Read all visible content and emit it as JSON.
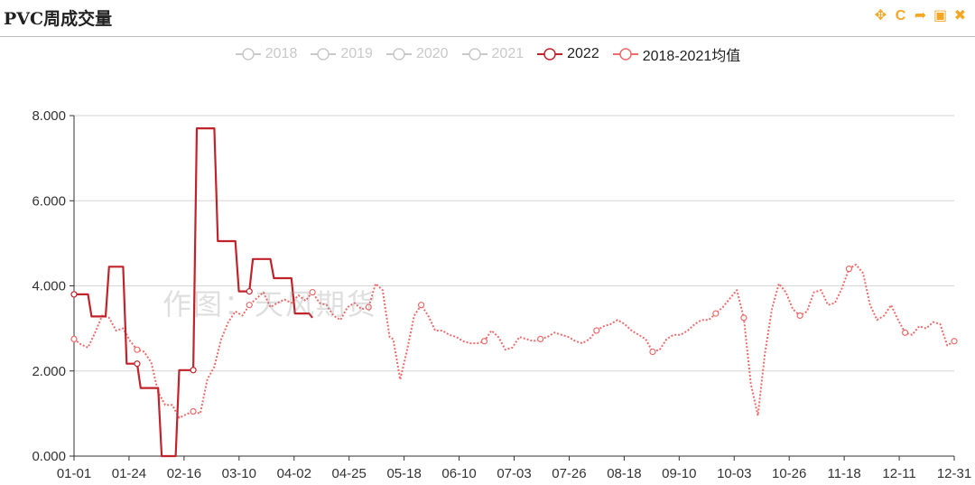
{
  "header": {
    "title": "PVC周成交量",
    "tools": [
      {
        "name": "move-icon",
        "glyph": "✥"
      },
      {
        "name": "refresh-icon",
        "glyph": "C"
      },
      {
        "name": "share-icon",
        "glyph": "➦"
      },
      {
        "name": "save-image-icon",
        "glyph": "▣"
      },
      {
        "name": "close-icon",
        "glyph": "✖"
      }
    ]
  },
  "watermark": "作图：天风期货",
  "legend": [
    {
      "label": "2018",
      "active": false,
      "color": "#c9c9c9"
    },
    {
      "label": "2019",
      "active": false,
      "color": "#c9c9c9"
    },
    {
      "label": "2020",
      "active": false,
      "color": "#c9c9c9"
    },
    {
      "label": "2021",
      "active": false,
      "color": "#c9c9c9"
    },
    {
      "label": "2022",
      "active": true,
      "color": "#c1232b"
    },
    {
      "label": "2018-2021均值",
      "active": true,
      "color": "#f06b6b"
    }
  ],
  "chart_data": {
    "type": "line",
    "title": "PVC周成交量",
    "ylim": [
      0,
      8
    ],
    "y_ticks": [
      "0.000",
      "2.000",
      "4.000",
      "6.000",
      "8.000"
    ],
    "x_ticks": [
      "01-01",
      "01-24",
      "02-16",
      "03-10",
      "04-02",
      "04-25",
      "05-18",
      "06-10",
      "07-03",
      "07-26",
      "08-18",
      "09-10",
      "10-03",
      "10-26",
      "11-18",
      "12-11",
      "12-31"
    ],
    "grid": true,
    "legend_position": "top-center",
    "series": [
      {
        "name": "2022",
        "style": "solid-step",
        "color": "#c1232b",
        "points": [
          [
            0,
            3.8
          ],
          [
            4,
            3.8
          ],
          [
            5,
            3.28
          ],
          [
            9,
            3.28
          ],
          [
            10,
            4.45
          ],
          [
            14,
            4.45
          ],
          [
            15,
            2.17
          ],
          [
            18,
            2.17
          ],
          [
            19,
            1.6
          ],
          [
            24,
            1.6
          ],
          [
            25,
            0.0
          ],
          [
            29,
            0.0
          ],
          [
            30,
            2.02
          ],
          [
            34,
            2.02
          ],
          [
            35,
            7.7
          ],
          [
            40,
            7.7
          ],
          [
            41,
            5.05
          ],
          [
            46,
            5.05
          ],
          [
            47,
            3.87
          ],
          [
            50,
            3.87
          ],
          [
            51,
            4.63
          ],
          [
            56,
            4.63
          ],
          [
            57,
            4.18
          ],
          [
            62,
            4.18
          ],
          [
            63,
            3.35
          ],
          [
            67,
            3.35
          ],
          [
            68,
            3.25
          ]
        ],
        "markers": [
          0,
          18,
          34,
          50
        ]
      },
      {
        "name": "2018-2021均值",
        "style": "dotted",
        "color": "#f06b6b",
        "points": [
          [
            0,
            2.75
          ],
          [
            2,
            2.62
          ],
          [
            4,
            2.55
          ],
          [
            6,
            2.9
          ],
          [
            8,
            3.3
          ],
          [
            10,
            3.25
          ],
          [
            12,
            2.95
          ],
          [
            14,
            3.0
          ],
          [
            16,
            2.7
          ],
          [
            18,
            2.5
          ],
          [
            20,
            2.45
          ],
          [
            22,
            2.2
          ],
          [
            24,
            1.5
          ],
          [
            26,
            1.2
          ],
          [
            28,
            1.2
          ],
          [
            30,
            0.9
          ],
          [
            32,
            0.98
          ],
          [
            34,
            1.05
          ],
          [
            36,
            1.0
          ],
          [
            38,
            1.8
          ],
          [
            40,
            2.1
          ],
          [
            42,
            2.75
          ],
          [
            44,
            3.15
          ],
          [
            46,
            3.4
          ],
          [
            48,
            3.3
          ],
          [
            50,
            3.55
          ],
          [
            52,
            3.7
          ],
          [
            54,
            3.85
          ],
          [
            56,
            3.5
          ],
          [
            58,
            3.6
          ],
          [
            60,
            3.68
          ],
          [
            62,
            3.6
          ],
          [
            64,
            3.78
          ],
          [
            66,
            3.65
          ],
          [
            68,
            3.85
          ],
          [
            70,
            3.6
          ],
          [
            72,
            3.55
          ],
          [
            74,
            3.3
          ],
          [
            76,
            3.2
          ],
          [
            78,
            3.5
          ],
          [
            80,
            3.6
          ],
          [
            82,
            3.45
          ],
          [
            84,
            3.5
          ],
          [
            86,
            4.05
          ],
          [
            88,
            3.9
          ],
          [
            90,
            2.8
          ],
          [
            91,
            2.75
          ],
          [
            93,
            1.8
          ],
          [
            95,
            2.5
          ],
          [
            97,
            3.3
          ],
          [
            99,
            3.55
          ],
          [
            101,
            3.3
          ],
          [
            103,
            2.95
          ],
          [
            105,
            2.95
          ],
          [
            107,
            2.85
          ],
          [
            109,
            2.8
          ],
          [
            111,
            2.7
          ],
          [
            113,
            2.65
          ],
          [
            115,
            2.65
          ],
          [
            117,
            2.7
          ],
          [
            119,
            2.95
          ],
          [
            121,
            2.8
          ],
          [
            123,
            2.5
          ],
          [
            125,
            2.55
          ],
          [
            127,
            2.8
          ],
          [
            129,
            2.75
          ],
          [
            131,
            2.7
          ],
          [
            133,
            2.75
          ],
          [
            135,
            2.8
          ],
          [
            137,
            2.9
          ],
          [
            139,
            2.85
          ],
          [
            141,
            2.8
          ],
          [
            143,
            2.7
          ],
          [
            145,
            2.65
          ],
          [
            147,
            2.75
          ],
          [
            149,
            2.95
          ],
          [
            151,
            3.05
          ],
          [
            153,
            3.1
          ],
          [
            155,
            3.2
          ],
          [
            157,
            3.1
          ],
          [
            159,
            2.95
          ],
          [
            161,
            2.85
          ],
          [
            163,
            2.75
          ],
          [
            165,
            2.45
          ],
          [
            167,
            2.5
          ],
          [
            169,
            2.75
          ],
          [
            171,
            2.85
          ],
          [
            173,
            2.85
          ],
          [
            175,
            2.95
          ],
          [
            177,
            3.1
          ],
          [
            179,
            3.2
          ],
          [
            181,
            3.2
          ],
          [
            183,
            3.35
          ],
          [
            185,
            3.5
          ],
          [
            187,
            3.7
          ],
          [
            189,
            3.9
          ],
          [
            191,
            3.25
          ],
          [
            193,
            1.7
          ],
          [
            195,
            0.95
          ],
          [
            197,
            2.4
          ],
          [
            199,
            3.45
          ],
          [
            201,
            4.05
          ],
          [
            203,
            3.85
          ],
          [
            205,
            3.45
          ],
          [
            207,
            3.3
          ],
          [
            209,
            3.4
          ],
          [
            211,
            3.85
          ],
          [
            213,
            3.9
          ],
          [
            215,
            3.55
          ],
          [
            217,
            3.6
          ],
          [
            219,
            3.95
          ],
          [
            221,
            4.4
          ],
          [
            223,
            4.5
          ],
          [
            225,
            4.3
          ],
          [
            227,
            3.55
          ],
          [
            229,
            3.2
          ],
          [
            231,
            3.3
          ],
          [
            233,
            3.55
          ],
          [
            235,
            3.2
          ],
          [
            237,
            2.9
          ],
          [
            239,
            2.85
          ],
          [
            241,
            3.05
          ],
          [
            243,
            3.0
          ],
          [
            245,
            3.15
          ],
          [
            247,
            3.1
          ],
          [
            249,
            2.6
          ],
          [
            251,
            2.7
          ]
        ],
        "markers": [
          0,
          18,
          34,
          50,
          68,
          84,
          100,
          117,
          133,
          149,
          166,
          183,
          191,
          207,
          222,
          238,
          251
        ]
      }
    ]
  }
}
